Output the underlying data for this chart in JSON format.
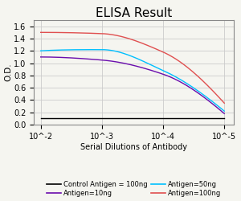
{
  "title": "ELISA Result",
  "ylabel": "O.D.",
  "xlabel": "Serial Dilutions of Antibody",
  "x_values": [
    0.01,
    0.001,
    0.0001,
    1e-05
  ],
  "x_ticks": [
    0.01,
    0.001,
    0.0001,
    1e-05
  ],
  "x_tick_labels": [
    "10^-2",
    "10^-3",
    "10^-4",
    "10^-5"
  ],
  "ylim": [
    0,
    1.7
  ],
  "yticks": [
    0,
    0.2,
    0.4,
    0.6,
    0.8,
    1.0,
    1.2,
    1.4,
    1.6
  ],
  "lines": [
    {
      "label": "Control Antigen = 100ng",
      "color": "#000000",
      "data": [
        0.1,
        0.1,
        0.1,
        0.1
      ]
    },
    {
      "label": "Antigen=10ng",
      "color": "#6a0dad",
      "data": [
        1.1,
        1.05,
        0.82,
        0.18
      ]
    },
    {
      "label": "Antigen=50ng",
      "color": "#00bfff",
      "data": [
        1.2,
        1.22,
        0.88,
        0.22
      ]
    },
    {
      "label": "Antigen=100ng",
      "color": "#e05050",
      "data": [
        1.5,
        1.48,
        1.18,
        0.35
      ]
    }
  ],
  "legend_lines": [
    {
      "label": "Control Antigen = 100ng",
      "color": "#000000"
    },
    {
      "label": "Antigen=10ng",
      "color": "#6a0dad"
    },
    {
      "label": "Antigen=50ng",
      "color": "#00bfff"
    },
    {
      "label": "Antigen=100ng",
      "color": "#e05050"
    }
  ],
  "background_color": "#f5f5f0",
  "plot_bg_color": "#f5f5f0",
  "title_fontsize": 11,
  "legend_fontsize": 6,
  "axis_fontsize": 7.5,
  "tick_fontsize": 7
}
